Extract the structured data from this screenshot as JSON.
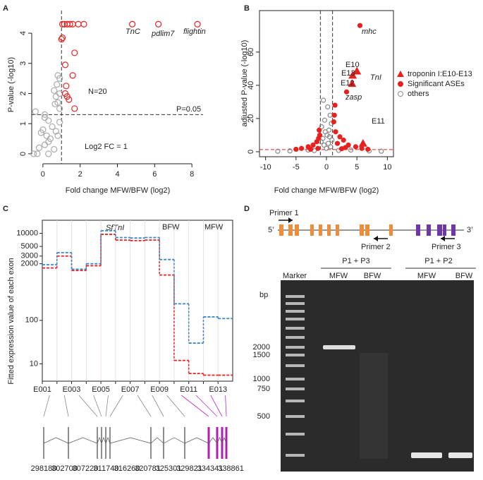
{
  "chart_data": [
    {
      "type": "scatter",
      "panel": "A",
      "xlabel": "Fold change MFW/BFW (log2)",
      "ylabel": "P-value (-log10)",
      "xlim": [
        -0.6,
        8.6
      ],
      "xticks": [
        0,
        2,
        4,
        6,
        8
      ],
      "ylim": [
        -0.33,
        4.75
      ],
      "yticks": [
        0,
        1,
        2,
        3,
        4
      ],
      "vlines": [
        1
      ],
      "hlines": [
        1.3
      ],
      "line_color": "#333333",
      "hline_color": "#333333",
      "box": false,
      "annotations": [
        "TnC",
        "pdlim7",
        "flightin",
        "N=20",
        "P=0.05",
        "Log2 FC = 1"
      ],
      "series": [
        {
          "color": "#aaaaaa",
          "marker": "circle",
          "filled": false,
          "x": [
            0.8,
            0.9,
            0.75,
            0.6,
            0.9,
            0.7,
            0.8,
            0.65,
            0.9,
            -0.4,
            0.1,
            0.3,
            0.9,
            0.5,
            0.0,
            -0.1,
            0.2,
            0.4,
            0.3,
            0.1,
            -0.2,
            0.6,
            -0.5,
            -0.3,
            0.3,
            0.1,
            0.7,
            0.8
          ],
          "values": [
            2.6,
            2.5,
            2.3,
            2.1,
            2.0,
            1.9,
            1.7,
            1.65,
            1.5,
            1.4,
            1.2,
            1.1,
            1.05,
            0.9,
            0.8,
            0.7,
            0.6,
            0.5,
            0.4,
            0.3,
            0.2,
            0.15,
            0.0,
            0.0,
            0.0,
            1.3,
            0.75,
            0.6
          ]
        },
        {
          "color": "#e8211f",
          "marker": "circle",
          "filled": false,
          "x": [
            1.05,
            1.3,
            1.45,
            1.6,
            1.9,
            2.2,
            4.8,
            6.2,
            8.3,
            1.0,
            1.05,
            1.7,
            1.2,
            1.6,
            1.25,
            1.2,
            1.4,
            1.7,
            1.15,
            1.3
          ],
          "values": [
            4.3,
            4.3,
            4.3,
            4.3,
            4.3,
            4.3,
            4.3,
            4.3,
            4.3,
            3.8,
            3.85,
            3.35,
            2.95,
            2.6,
            2.25,
            2.0,
            1.8,
            1.5,
            4.3,
            1.9
          ]
        }
      ]
    },
    {
      "type": "scatter",
      "panel": "B",
      "xlabel": "Fold change MFW/BFW (log2)",
      "ylabel": "adjusted P-value (-log10)",
      "xlim": [
        -11,
        11
      ],
      "xticks": [
        -10,
        -5,
        0,
        5,
        10
      ],
      "ylim": [
        -3,
        85
      ],
      "yticks": [
        0,
        20,
        40,
        60
      ],
      "vlines": [
        -1,
        1
      ],
      "hlines": [
        1.3
      ],
      "line_color": "#333333",
      "hline_color": "#e8211f",
      "box": true,
      "annotations": [
        "mhc",
        "E10",
        "E13",
        "TnI",
        "E12",
        "zasp",
        "E11"
      ],
      "series": [
        {
          "name": "others",
          "color": "#888888",
          "marker": "circle",
          "filled": false,
          "x": [
            -0.5,
            0.2,
            0.6,
            -0.3,
            0.8,
            -0.8,
            0.4,
            -0.2,
            0.1,
            0.5,
            -0.6,
            0.9,
            -0.9,
            0.3,
            -0.4,
            0.7,
            -3,
            -6,
            4,
            7,
            -8,
            9,
            2,
            -2,
            0.0
          ],
          "values": [
            31,
            27,
            22,
            19,
            17,
            15,
            13,
            12,
            10,
            9,
            8,
            7,
            6,
            5,
            4,
            3,
            1,
            0.5,
            1,
            0.5,
            0.3,
            0.3,
            0.8,
            0.7,
            2
          ]
        },
        {
          "name": "Significant ASEs",
          "color": "#e8211f",
          "marker": "circle",
          "filled": true,
          "x": [
            5.5,
            3.3,
            -1.3,
            -1.6,
            -2.2,
            -3.0,
            -4.1,
            -1.2,
            1.5,
            2.2,
            2.8,
            3.6,
            4.8,
            1.2,
            1.8,
            -1.4,
            -2.6,
            5.8,
            1.4,
            -1.1,
            3.1,
            2.5,
            -5.0,
            6.8,
            1.3
          ],
          "values": [
            76,
            36,
            8,
            6,
            4,
            3,
            2,
            13,
            12,
            9,
            7,
            4,
            3,
            18,
            5,
            2,
            1.5,
            2,
            28,
            10,
            2.5,
            1.8,
            1.5,
            1.5,
            22
          ]
        },
        {
          "name": "troponin I:E10-E13",
          "color": "#e8211f",
          "marker": "triangle",
          "filled": true,
          "x": [
            4.3,
            5.0,
            4.2,
            6.0
          ],
          "values": [
            46,
            48.5,
            41,
            5
          ]
        }
      ]
    },
    {
      "type": "line",
      "panel": "C",
      "title": "SfTnI",
      "ylabel": "Fitted expression value of each exon",
      "log_scale": true,
      "ylim": [
        4,
        20000
      ],
      "yticks": [
        10,
        100,
        2000,
        3000,
        5000,
        10000
      ],
      "categories": [
        "E001",
        null,
        "E003",
        null,
        "E005",
        null,
        "E007",
        null,
        "E009",
        null,
        "E011",
        null,
        "E013"
      ],
      "series": [
        {
          "name": "BFW",
          "color": "#e8211f",
          "values": [
            1600,
            3000,
            1400,
            1800,
            9500,
            7000,
            6800,
            7000,
            1100,
            12,
            6,
            5.5,
            5.5
          ]
        },
        {
          "name": "MFW",
          "color": "#3b86c6",
          "values": [
            1900,
            3600,
            1500,
            2000,
            11500,
            8000,
            7800,
            8000,
            2500,
            240,
            30,
            120,
            110
          ]
        }
      ]
    }
  ],
  "gene_model": {
    "coordinates": [
      298180,
      302700,
      307220,
      311740,
      316260,
      320781,
      325301,
      329821,
      334341,
      338861
    ]
  },
  "gel": {
    "panel": "D",
    "five_prime": "5’",
    "three_prime": "3’",
    "primers": [
      "Primer 1",
      "Primer 2",
      "Primer 3"
    ],
    "groups": [
      "P1 + P3",
      "P1 + P2"
    ],
    "lanes": [
      "Marker",
      "MFW",
      "BFW",
      "MFW",
      "BFW"
    ],
    "unit": "bp",
    "ladder": [
      "2000",
      "1500",
      "1000",
      "750",
      "500"
    ]
  }
}
